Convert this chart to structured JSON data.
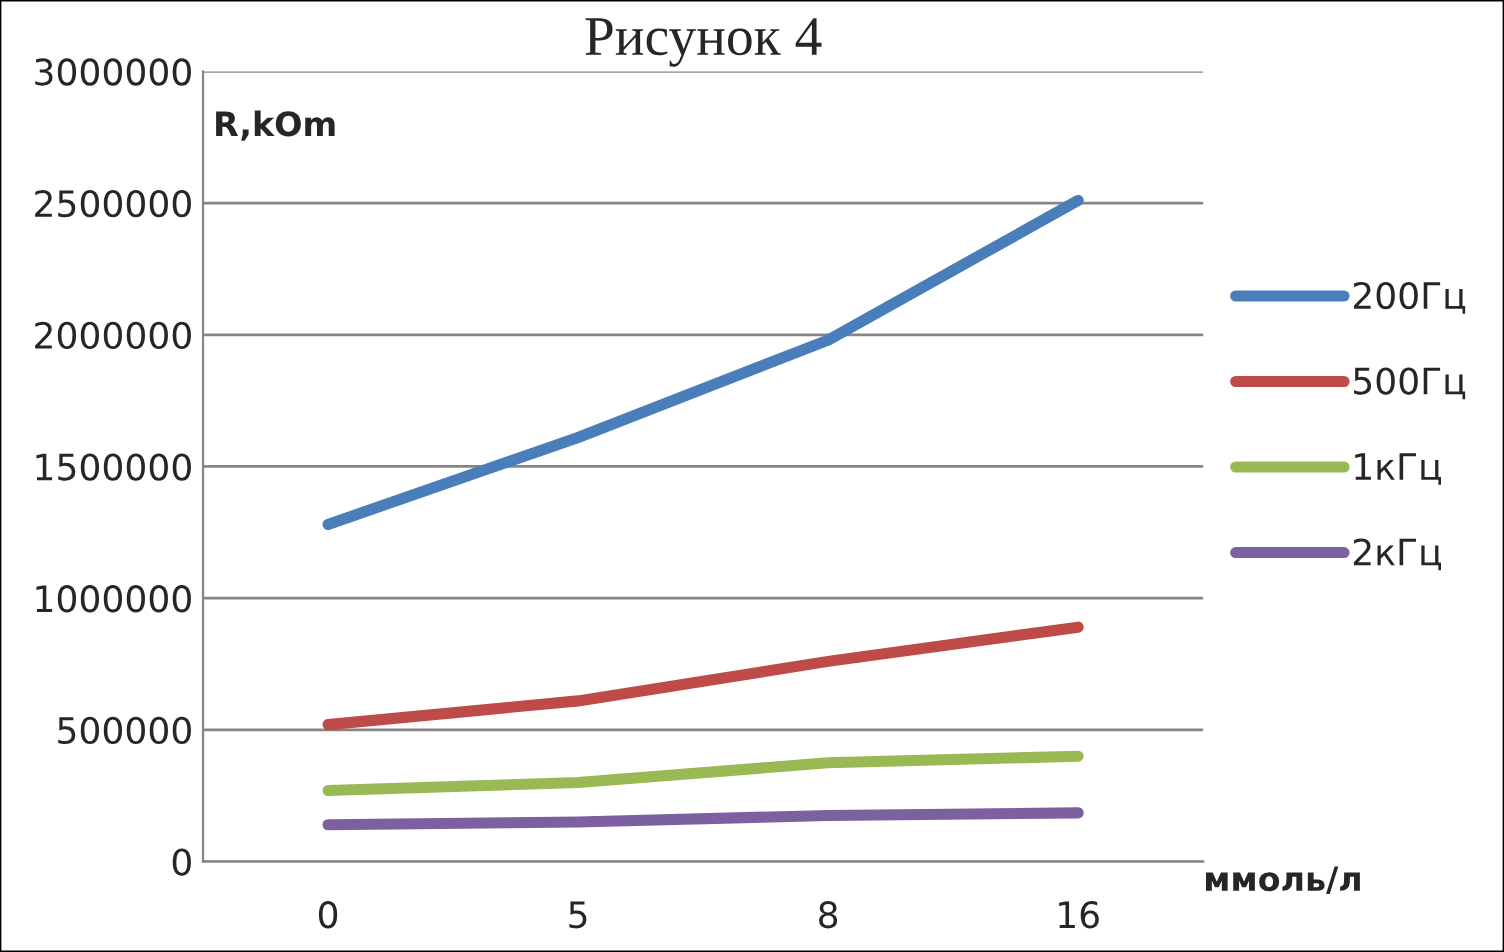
{
  "chart_data": {
    "type": "line",
    "title": "Рисунок 4",
    "xlabel": "ммоль/л",
    "ylabel": "R,kOm",
    "categories": [
      "0",
      "5",
      "8",
      "16"
    ],
    "series": [
      {
        "name": "200Гц",
        "color": "#4a7ebb",
        "values": [
          1280000,
          1610000,
          1980000,
          2510000
        ]
      },
      {
        "name": "500Гц",
        "color": "#be4b48",
        "values": [
          520000,
          610000,
          760000,
          890000
        ]
      },
      {
        "name": "1кГц",
        "color": "#98b954",
        "values": [
          270000,
          300000,
          375000,
          400000
        ]
      },
      {
        "name": "2кГц",
        "color": "#7d60a0",
        "values": [
          140000,
          150000,
          175000,
          185000
        ]
      }
    ],
    "ylim": [
      0,
      3000000
    ],
    "yticks": [
      0,
      500000,
      1000000,
      1500000,
      2000000,
      2500000,
      3000000
    ],
    "grid": "y",
    "legend": "right",
    "marker": "none",
    "line_style": "solid"
  }
}
